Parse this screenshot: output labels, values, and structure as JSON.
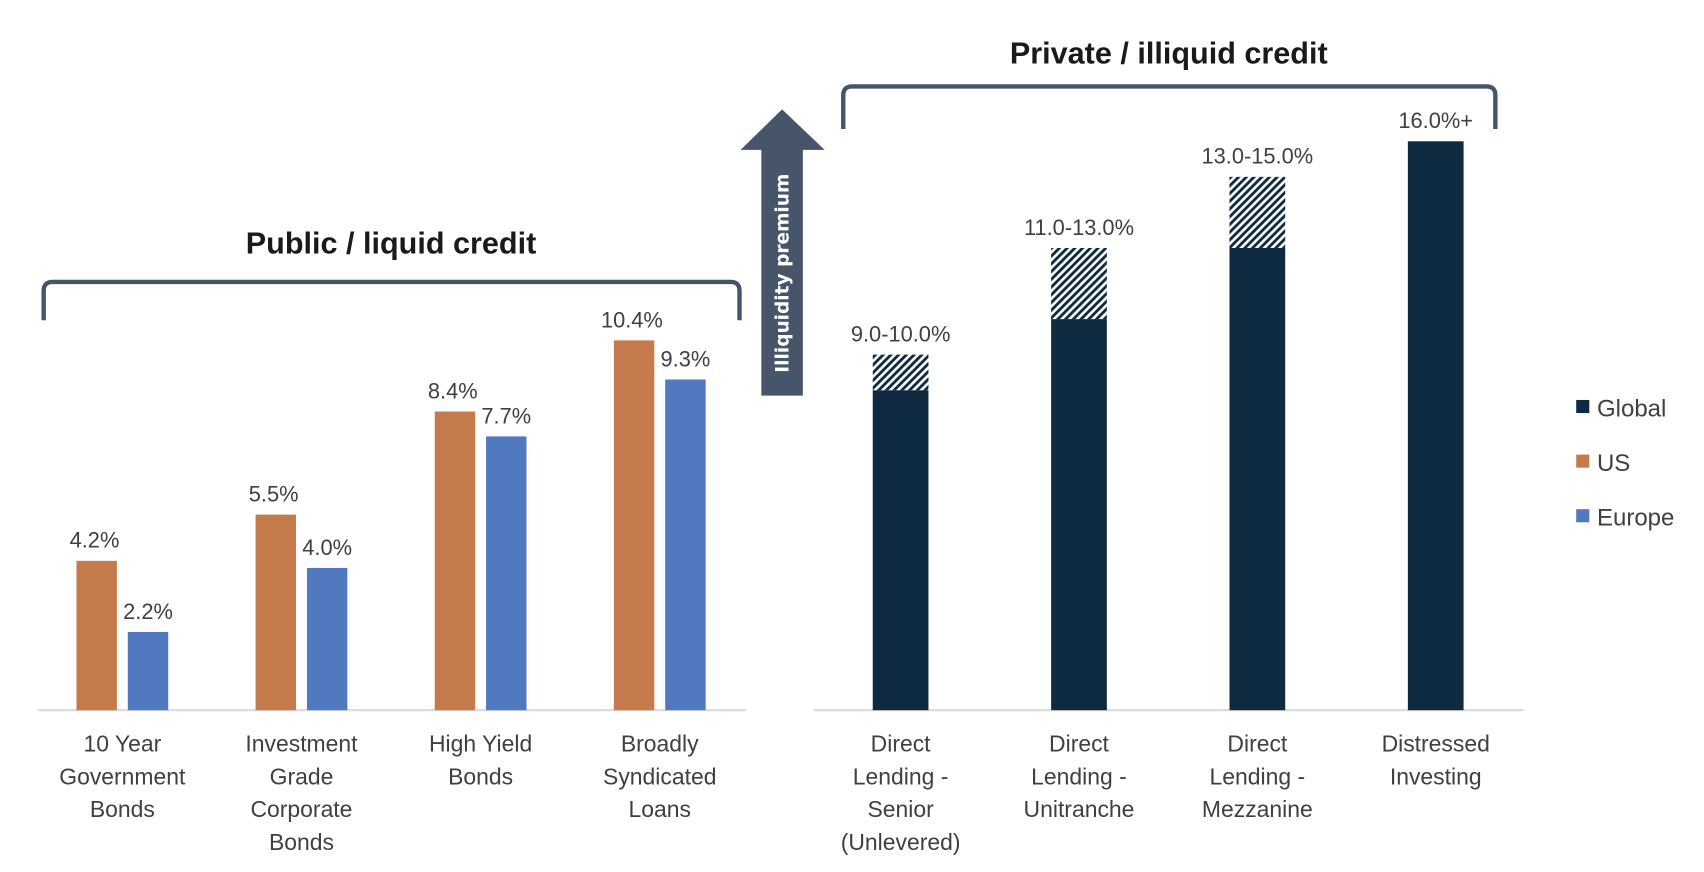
{
  "chart_data": [
    {
      "type": "bar",
      "title": "Public / liquid credit",
      "categories": [
        [
          "10 Year",
          "Government",
          "Bonds"
        ],
        [
          "Investment",
          "Grade",
          "Corporate",
          "Bonds"
        ],
        [
          "High Yield",
          "Bonds"
        ],
        [
          "Broadly",
          "Syndicated",
          "Loans"
        ]
      ],
      "series": [
        {
          "name": "US",
          "color": "#C47A4A",
          "values": [
            4.2,
            5.5,
            8.4,
            10.4
          ],
          "labels": [
            "4.2%",
            "5.5%",
            "8.4%",
            "10.4%"
          ]
        },
        {
          "name": "Europe",
          "color": "#5079C0",
          "values": [
            2.2,
            4.0,
            7.7,
            9.3
          ],
          "labels": [
            "2.2%",
            "4.0%",
            "7.7%",
            "9.3%"
          ]
        }
      ],
      "ylim": [
        0,
        16
      ],
      "grid": false
    },
    {
      "type": "bar",
      "title": "Private / illiquid credit",
      "categories": [
        [
          "Direct",
          "Lending -",
          "Senior",
          "(Unlevered)"
        ],
        [
          "Direct",
          "Lending -",
          "Unitranche"
        ],
        [
          "Direct",
          "Lending -",
          "Mezzanine"
        ],
        [
          "Distressed",
          "Investing"
        ]
      ],
      "series": [
        {
          "name": "Global",
          "color": "#0E2A40",
          "low": [
            9.0,
            11.0,
            13.0,
            16.0
          ],
          "high": [
            10.0,
            13.0,
            15.0,
            null
          ],
          "labels": [
            "9.0-10.0%",
            "11.0-13.0%",
            "13.0-15.0%",
            "16.0%+"
          ]
        }
      ],
      "ylim": [
        0,
        16
      ],
      "grid": false
    }
  ],
  "arrow": {
    "label": "Illiquidity premium",
    "color": "#465569"
  },
  "bracket_color": "#44546A",
  "legend": {
    "placement": "right",
    "items": [
      {
        "name": "Global",
        "color": "#0E2A40"
      },
      {
        "name": "US",
        "color": "#C47A4A"
      },
      {
        "name": "Europe",
        "color": "#5079C0"
      }
    ]
  }
}
